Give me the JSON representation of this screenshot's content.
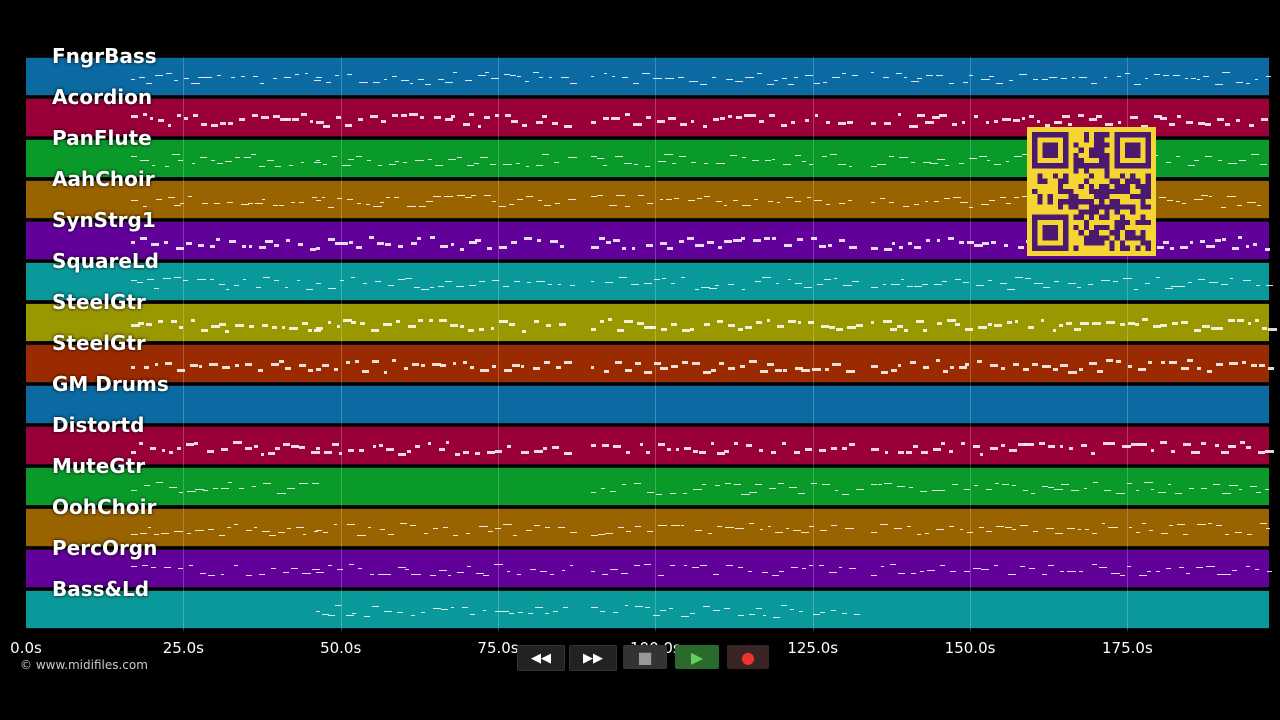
{
  "tracks": [
    {
      "name": "FngrBass",
      "color": "#0a6aa1"
    },
    {
      "name": "Acordion",
      "color": "#99003a"
    },
    {
      "name": "PanFlute",
      "color": "#0a9a2a"
    },
    {
      "name": "AahChoir",
      "color": "#996300"
    },
    {
      "name": "SynStrg1",
      "color": "#62009a"
    },
    {
      "name": "SquareLd",
      "color": "#0a999a"
    },
    {
      "name": "SteelGtr",
      "color": "#9a9800"
    },
    {
      "name": "SteelGtr",
      "color": "#9a2a00"
    },
    {
      "name": "GM Drums",
      "color": "#0a6aa1"
    },
    {
      "name": "Distortd",
      "color": "#99003a"
    },
    {
      "name": "MuteGtr",
      "color": "#0a9a2a"
    },
    {
      "name": "OohChoir",
      "color": "#996300"
    },
    {
      "name": "PercOrgn",
      "color": "#62009a"
    },
    {
      "name": "Bass&Ld",
      "color": "#0a999a"
    }
  ],
  "axis": {
    "ticks": [
      "0.0s",
      "25.0s",
      "50.0s",
      "75.0s",
      "100.0s",
      "125.0s",
      "150.0s",
      "175.0s"
    ],
    "tick_values": [
      0,
      25,
      50,
      75,
      100,
      125,
      150,
      175
    ],
    "max_seconds": 197.5
  },
  "copyright": "© www.midifiles.com",
  "transport": {
    "rewind": "◀◀",
    "forward": "▶▶",
    "stop": "■",
    "play": "▶",
    "record": "●"
  },
  "colors": {
    "qr_bg": "#f5d531",
    "qr_fg": "#4b1a6e"
  }
}
